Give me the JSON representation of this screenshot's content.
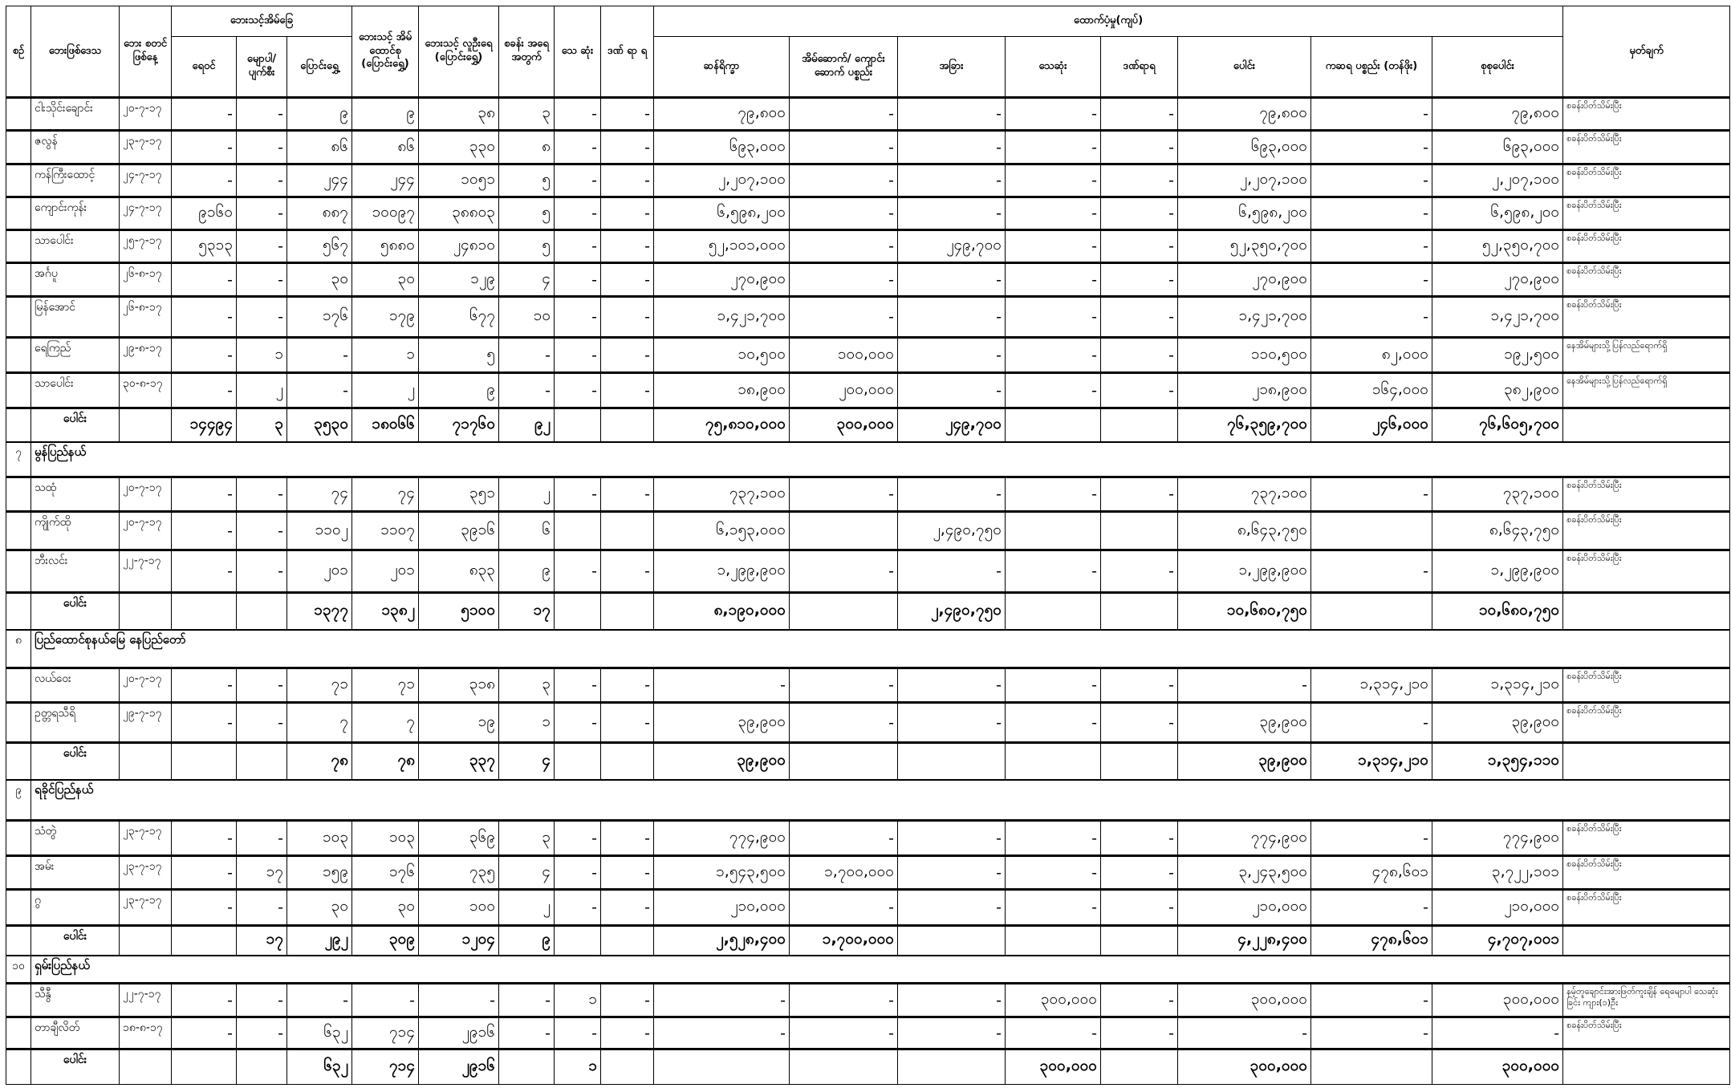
{
  "header": {
    "seq": "စဉ်",
    "area": "ဘေးဖြစ်ဒေသ",
    "start_date": "ဘေး စတင် ဖြစ်နေ့",
    "houses_group": "ဘေးသင့်အိမ်ခြေ",
    "flooded": "ရေဝင်",
    "destroyed": "မျောပါ/ ပျက်စီး",
    "relocated": "ပြောင်းရွှေ့",
    "households": "ဘေးသင့် အိမ် ထောင်စု (ပြောင်းရွှေ့)",
    "population": "ဘေးသင့် လူဦးရေ (ပြောင်းရွှေ့)",
    "camps": "စခန်း အရေ အတွက်",
    "dead": "သေ ဆုံး",
    "injured": "ဒဏ် ရာ ရ",
    "support_group": "ထောက်ပံ့မှု(ကျပ်)",
    "rations": "ဆန်ရိက္ခာ",
    "building_materials": "အိမ်ဆောက်/ ကျောင်းဆောက် ပစ္စည်း",
    "other": "အခြား",
    "death_support": "သေဆုံး",
    "injury_support": "ဒဏ်ရာရ",
    "subtotal": "ပေါင်း",
    "goods": "ကဆရ ပစ္စည်း (တန်ဖိုး)",
    "grand_total": "စုစုပေါင်း",
    "remarks": "မှတ်ချက်"
  },
  "table": {
    "rows": [
      {
        "type": "data",
        "cells": [
          "",
          "ငါးသိုင်းချောင်း",
          "၂၀-၇-၁၇",
          "-",
          "-",
          "၉",
          "၉",
          "၃၈",
          "၃",
          "-",
          "-",
          "၇၉,၈၀၀",
          "-",
          "-",
          "-",
          "-",
          "၇၉,၈၀၀",
          "-",
          "၇၉,၈၀၀",
          "စခန်းပိတ်သိမ်းပြီး"
        ]
      },
      {
        "type": "data",
        "cells": [
          "",
          "ဇလွန်",
          "၂၃-၇-၁၇",
          "-",
          "-",
          "၈၆",
          "၈၆",
          "၃၃၀",
          "၈",
          "-",
          "-",
          "၆၉၃,၀၀၀",
          "-",
          "-",
          "-",
          "-",
          "၆၉၃,၀၀၀",
          "-",
          "၆၉၃,၀၀၀",
          "စခန်းပိတ်သိမ်းပြီး"
        ]
      },
      {
        "type": "data",
        "cells": [
          "",
          "ကန်ကြီးထောင့်",
          "၂၄-၇-၁၇",
          "-",
          "-",
          "၂၄၄",
          "၂၄၄",
          "၁၀၅၁",
          "၅",
          "-",
          "-",
          "၂,၂၀၇,၁၀၀",
          "-",
          "-",
          "-",
          "-",
          "၂,၂၀၇,၁၀၀",
          "-",
          "၂,၂၀၇,၁၀၀",
          "စခန်းပိတ်သိမ်းပြီး"
        ]
      },
      {
        "type": "data",
        "cells": [
          "",
          "ကျောင်းကုန်း",
          "၂၄-၇-၁၇",
          "၉၁၆၀",
          "-",
          "၈၈၇",
          "၁၀၀၉၇",
          "၃၈၈၀၃",
          "၅",
          "-",
          "-",
          "၆,၅၉၈,၂၀၀",
          "-",
          "-",
          "-",
          "-",
          "၆,၅၉၈,၂၀၀",
          "-",
          "၆,၅၉၈,၂၀၀",
          "စခန်းပိတ်သိမ်းပြီး"
        ]
      },
      {
        "type": "data",
        "cells": [
          "",
          "သာပေါင်း",
          "၂၅-၇-၁၇",
          "၅၃၁၃",
          "-",
          "၅၆၇",
          "၅၈၈၀",
          "၂၄၈၁၀",
          "၅",
          "-",
          "-",
          "၅၂,၁၀၁,၀၀၀",
          "-",
          "၂၄၉,၇၀၀",
          "-",
          "-",
          "၅၂,၃၅၀,၇၀၀",
          "-",
          "၅၂,၃၅၀,၇၀၀",
          "စခန်းပိတ်သိမ်းပြီး"
        ]
      },
      {
        "type": "data",
        "cells": [
          "",
          "အင်္ဂပူ",
          "၂၆-၈-၁၇",
          "-",
          "-",
          "၃၀",
          "၃၀",
          "၁၂၉",
          "၄",
          "-",
          "-",
          "၂၇၀,၉၀၀",
          "-",
          "-",
          "-",
          "-",
          "၂၇၀,၉၀၀",
          "-",
          "၂၇၀,၉၀၀",
          "စခန်းပိတ်သိမ်းပြီး"
        ]
      },
      {
        "type": "data",
        "cells": [
          "",
          "မြန်အောင်",
          "၂၆-၈-၁၇",
          "-",
          "-",
          "၁၇၆",
          "၁၇၉",
          "၆၇၇",
          "၁၀",
          "-",
          "-",
          "၁,၄၂၁,၇၀၀",
          "-",
          "-",
          "-",
          "-",
          "၁,၄၂၁,၇၀၀",
          "-",
          "၁,၄၂၁,၇၀၀",
          "စခန်းပိတ်သိမ်းပြီး"
        ]
      },
      {
        "type": "data",
        "cells": [
          "",
          "ရေကြည်",
          "၂၉-၈-၁၇",
          "-",
          "၁",
          "-",
          "၁",
          "၅",
          "-",
          "-",
          "-",
          "၁၀,၅၀၀",
          "၁၀၀,၀၀၀",
          "-",
          "-",
          "-",
          "၁၁၀,၅၀၀",
          "၈၂,၀၀၀",
          "၁၉၂,၅၀၀",
          "နေအိမ်များသို့ပြန်လည်ရောက်ရှိ"
        ]
      },
      {
        "type": "data",
        "cells": [
          "",
          "သာပေါင်း",
          "၃၀-၈-၁၇",
          "-",
          "၂",
          "-",
          "၂",
          "၉",
          "-",
          "-",
          "-",
          "၁၈,၉၀၀",
          "၂၀၀,၀၀၀",
          "-",
          "-",
          "-",
          "၂၁၈,၉၀၀",
          "၁၆၄,၀၀၀",
          "၃၈၂,၉၀၀",
          "နေအိမ်များသို့ပြန်လည်ရောက်ရှိ"
        ]
      },
      {
        "type": "total",
        "cells": [
          "",
          "ပေါင်း",
          "",
          "၁၄၄၉၄",
          "၃",
          "၃၅၃၀",
          "၁၈၀၆၆",
          "၇၁၇၆၀",
          "၉၂",
          "",
          "",
          "၇၅,၈၁၀,၀၀၀",
          "၃၀၀,၀၀၀",
          "၂၄၉,၇၀၀",
          "",
          "",
          "၇၆,၃၅၉,၇၀၀",
          "၂၄၆,၀၀၀",
          "၇၆,၆၀၅,၇၀၀",
          ""
        ]
      },
      {
        "type": "section",
        "seq": "၇",
        "name": "မွန်ပြည်နယ်"
      },
      {
        "type": "data",
        "cells": [
          "",
          "သထုံ",
          "၂၀-၇-၁၇",
          "-",
          "-",
          "၇၄",
          "၇၄",
          "၃၅၁",
          "၂",
          "-",
          "-",
          "၇၃၇,၁၀၀",
          "-",
          "-",
          "-",
          "-",
          "၇၃၇,၁၀၀",
          "-",
          "၇၃၇,၁၀၀",
          "စခန်းပိတ်သိမ်းပြီး"
        ]
      },
      {
        "type": "data",
        "cells": [
          "",
          "ကျိုက်ထို",
          "၂၀-၇-၁၇",
          "-",
          "-",
          "၁၁၀၂",
          "၁၁၀၇",
          "၃၉၁၆",
          "၆",
          "",
          "",
          "၆,၁၅၃,၀၀၀",
          "",
          "၂,၄၉၀,၇၅၀",
          "",
          "",
          "၈,၆၄၃,၇၅၀",
          "",
          "၈,၆၄၃,၇၅၀",
          "စခန်းပိတ်သိမ်းပြီး"
        ]
      },
      {
        "type": "data",
        "cells": [
          "",
          "ဘီးလင်း",
          "၂၂-၇-၁၇",
          "-",
          "-",
          "၂၀၁",
          "၂၀၁",
          "၈၃၃",
          "၉",
          "-",
          "-",
          "၁,၂၉၉,၉၀၀",
          "-",
          "-",
          "-",
          "-",
          "၁,၂၉၉,၉၀၀",
          "-",
          "၁,၂၉၉,၉၀၀",
          "စခန်းပိတ်သိမ်းပြီး"
        ]
      },
      {
        "type": "total",
        "cells": [
          "",
          "ပေါင်း",
          "",
          "",
          "",
          "၁၃၇၇",
          "၁၃၈၂",
          "၅၁၀၀",
          "၁၇",
          "",
          "",
          "၈,၁၉၀,၀၀၀",
          "",
          "၂,၄၉၀,၇၅၀",
          "",
          "",
          "၁၀,၆၈၀,၇၅၀",
          "",
          "၁၀,၆၈၀,၇၅၀",
          ""
        ]
      },
      {
        "type": "section",
        "seq": "၈",
        "name": "ပြည်ထောင်စုနယ်မြေ နေပြည်တော်"
      },
      {
        "type": "data",
        "cells": [
          "",
          "လယ်ဝေး",
          "၂၀-၇-၁၇",
          "-",
          "-",
          "၇၁",
          "၇၁",
          "၃၁၈",
          "၃",
          "-",
          "-",
          "-",
          "-",
          "-",
          "-",
          "-",
          "-",
          "၁,၃၁၄,၂၁၀",
          "၁,၃၁၄,၂၁၀",
          "စခန်းပိတ်သိမ်းပြီး"
        ]
      },
      {
        "type": "data",
        "cells": [
          "",
          "ဥတ္တရသီရိ",
          "၂၉-၇-၁၇",
          "-",
          "-",
          "၇",
          "၇",
          "၁၉",
          "၁",
          "-",
          "-",
          "၃၉,၉၀၀",
          "-",
          "-",
          "-",
          "-",
          "၃၉,၉၀၀",
          "-",
          "၃၉,၉၀၀",
          "စခန်းပိတ်သိမ်းပြီး"
        ]
      },
      {
        "type": "total",
        "cells": [
          "",
          "ပေါင်း",
          "",
          "",
          "",
          "၇၈",
          "၇၈",
          "၃၃၇",
          "၄",
          "",
          "",
          "၃၉,၉၀၀",
          "",
          "",
          "",
          "",
          "၃၉,၉၀၀",
          "၁,၃၁၄,၂၁၀",
          "၁,၃၅၄,၁၁၀",
          ""
        ]
      },
      {
        "type": "section",
        "seq": "၉",
        "name": "ရခိုင်ပြည်နယ်"
      },
      {
        "type": "data",
        "cells": [
          "",
          "သံတွဲ",
          "၂၃-၇-၁၇",
          "-",
          "-",
          "၁၀၃",
          "၁၀၃",
          "၃၆၉",
          "၃",
          "-",
          "-",
          "၇၇၄,၉၀၀",
          "-",
          "-",
          "-",
          "-",
          "၇၇၄,၉၀၀",
          "-",
          "၇၇၄,၉၀၀",
          "စခန်းပိတ်သိမ်းပြီး"
        ]
      },
      {
        "type": "data",
        "cells": [
          "",
          "အမ်း",
          "၂၃-၇-၁၇",
          "-",
          "၁၇",
          "၁၅၉",
          "၁၇၆",
          "၇၃၅",
          "၄",
          "-",
          "-",
          "၁,၅၄၃,၅၀၀",
          "၁,၇၀၀,၀၀၀",
          "-",
          "-",
          "-",
          "၃,၂၄၃,၅၀၀",
          "၄၇၈,၆၀၁",
          "၃,၇၂၂,၁၀၁",
          "စခန်းပိတ်သိမ်းပြီး"
        ]
      },
      {
        "type": "data",
        "cells": [
          "",
          "ဂွ",
          "၂၃-၇-၁၇",
          "-",
          "-",
          "၃၀",
          "၃၀",
          "၁၀၀",
          "၂",
          "-",
          "-",
          "၂၁၀,၀၀၀",
          "-",
          "-",
          "-",
          "-",
          "၂၁၀,၀၀၀",
          "-",
          "၂၁၀,၀၀၀",
          "စခန်းပိတ်သိမ်းပြီး"
        ]
      },
      {
        "type": "total",
        "cells": [
          "",
          "ပေါင်း",
          "",
          "",
          "၁၇",
          "၂၉၂",
          "၃၀၉",
          "၁၂၀၄",
          "၉",
          "",
          "",
          "၂,၅၂၈,၄၀၀",
          "၁,၇၀၀,၀၀၀",
          "",
          "",
          "",
          "၄,၂၂၈,၄၀၀",
          "၄၇၈,၆၀၁",
          "၄,၇၀၇,၀၀၁",
          ""
        ]
      },
      {
        "type": "section",
        "seq": "၁၀",
        "name": "ရှမ်းပြည်နယ်"
      },
      {
        "type": "data",
        "cells": [
          "",
          "သီနွီ",
          "၂၂-၇-၁၇",
          "-",
          "-",
          "-",
          "-",
          "-",
          "-",
          "၁",
          "-",
          "-",
          "-",
          "-",
          "၃၀၀,၀၀၀",
          "-",
          "၃၀၀,၀၀၀",
          "-",
          "၃၀၀,၀၀၀",
          "နမ့်တူချောင်းအားဖြတ်ကူးချိန် ရေမျောပါ သေဆုံးခြင်း ကျား(၁)ဦး"
        ]
      },
      {
        "type": "data",
        "cells": [
          "",
          "တာချီလိတ်",
          "၁၈-၈-၁၇",
          "-",
          "-",
          "၆၃၂",
          "၇၁၄",
          "၂၉၁၆",
          "-",
          "-",
          "-",
          "-",
          "-",
          "-",
          "-",
          "-",
          "-",
          "-",
          "-",
          "စခန်းပိတ်သိမ်းပြီး"
        ]
      },
      {
        "type": "total",
        "cells": [
          "",
          "ပေါင်း",
          "",
          "",
          "",
          "၆၃၂",
          "၇၁၄",
          "၂၉၁၆",
          "",
          "၁",
          "",
          "",
          "",
          "",
          "၃၀၀,၀၀၀",
          "",
          "၃၀၀,၀၀၀",
          "",
          "၃၀၀,၀၀၀",
          ""
        ]
      }
    ]
  }
}
